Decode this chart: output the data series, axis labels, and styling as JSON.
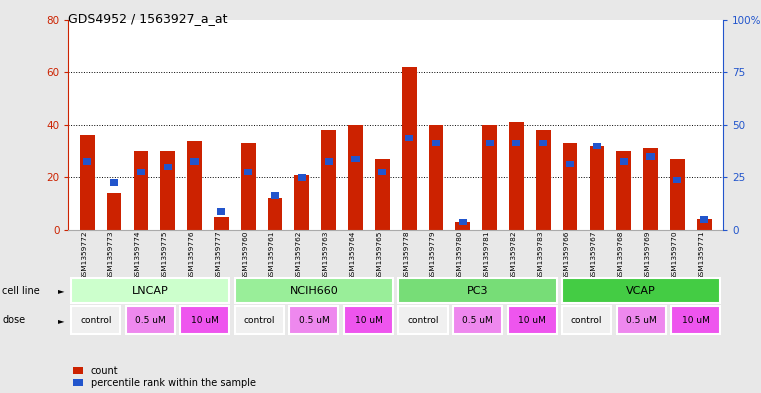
{
  "title": "GDS4952 / 1563927_a_at",
  "samples": [
    "GSM1359772",
    "GSM1359773",
    "GSM1359774",
    "GSM1359775",
    "GSM1359776",
    "GSM1359777",
    "GSM1359760",
    "GSM1359761",
    "GSM1359762",
    "GSM1359763",
    "GSM1359764",
    "GSM1359765",
    "GSM1359778",
    "GSM1359779",
    "GSM1359780",
    "GSM1359781",
    "GSM1359782",
    "GSM1359783",
    "GSM1359766",
    "GSM1359767",
    "GSM1359768",
    "GSM1359769",
    "GSM1359770",
    "GSM1359771"
  ],
  "red_values": [
    36,
    14,
    30,
    30,
    34,
    5,
    33,
    12,
    21,
    38,
    40,
    27,
    62,
    40,
    3,
    40,
    41,
    38,
    33,
    32,
    30,
    31,
    27,
    4
  ],
  "blue_values": [
    26,
    18,
    22,
    24,
    26,
    7,
    22,
    13,
    20,
    26,
    27,
    22,
    35,
    33,
    3,
    33,
    33,
    33,
    25,
    32,
    26,
    28,
    19,
    4
  ],
  "ylim_left": [
    0,
    80
  ],
  "ylim_right": [
    0,
    100
  ],
  "yticks_left": [
    0,
    20,
    40,
    60,
    80
  ],
  "yticks_right": [
    0,
    25,
    50,
    75,
    100
  ],
  "ytick_labels_right": [
    "0",
    "25",
    "50",
    "75",
    "100%"
  ],
  "red_color": "#cc2200",
  "blue_color": "#2255cc",
  "bar_width": 0.55,
  "fig_bg": "#e8e8e8",
  "plot_bg": "#ffffff",
  "cell_line_data": [
    {
      "label": "LNCAP",
      "start": 0,
      "end": 6,
      "color": "#ccffcc"
    },
    {
      "label": "NCIH660",
      "start": 6,
      "end": 12,
      "color": "#99ee99"
    },
    {
      "label": "PC3",
      "start": 12,
      "end": 18,
      "color": "#77dd77"
    },
    {
      "label": "VCAP",
      "start": 18,
      "end": 24,
      "color": "#44cc44"
    }
  ],
  "dose_data": [
    {
      "label": "control",
      "start": 0,
      "end": 2,
      "color": "#f0f0f0"
    },
    {
      "label": "0.5 uM",
      "start": 2,
      "end": 4,
      "color": "#ee88ee"
    },
    {
      "label": "10 uM",
      "start": 4,
      "end": 6,
      "color": "#ee55ee"
    },
    {
      "label": "control",
      "start": 6,
      "end": 8,
      "color": "#f0f0f0"
    },
    {
      "label": "0.5 uM",
      "start": 8,
      "end": 10,
      "color": "#ee88ee"
    },
    {
      "label": "10 uM",
      "start": 10,
      "end": 12,
      "color": "#ee55ee"
    },
    {
      "label": "control",
      "start": 12,
      "end": 14,
      "color": "#f0f0f0"
    },
    {
      "label": "0.5 uM",
      "start": 14,
      "end": 16,
      "color": "#ee88ee"
    },
    {
      "label": "10 uM",
      "start": 16,
      "end": 18,
      "color": "#ee55ee"
    },
    {
      "label": "control",
      "start": 18,
      "end": 20,
      "color": "#f0f0f0"
    },
    {
      "label": "0.5 uM",
      "start": 20,
      "end": 22,
      "color": "#ee88ee"
    },
    {
      "label": "10 uM",
      "start": 22,
      "end": 24,
      "color": "#ee55ee"
    }
  ],
  "grid_lines": [
    20,
    40,
    60
  ],
  "label_area_color": "#d0d0d0"
}
